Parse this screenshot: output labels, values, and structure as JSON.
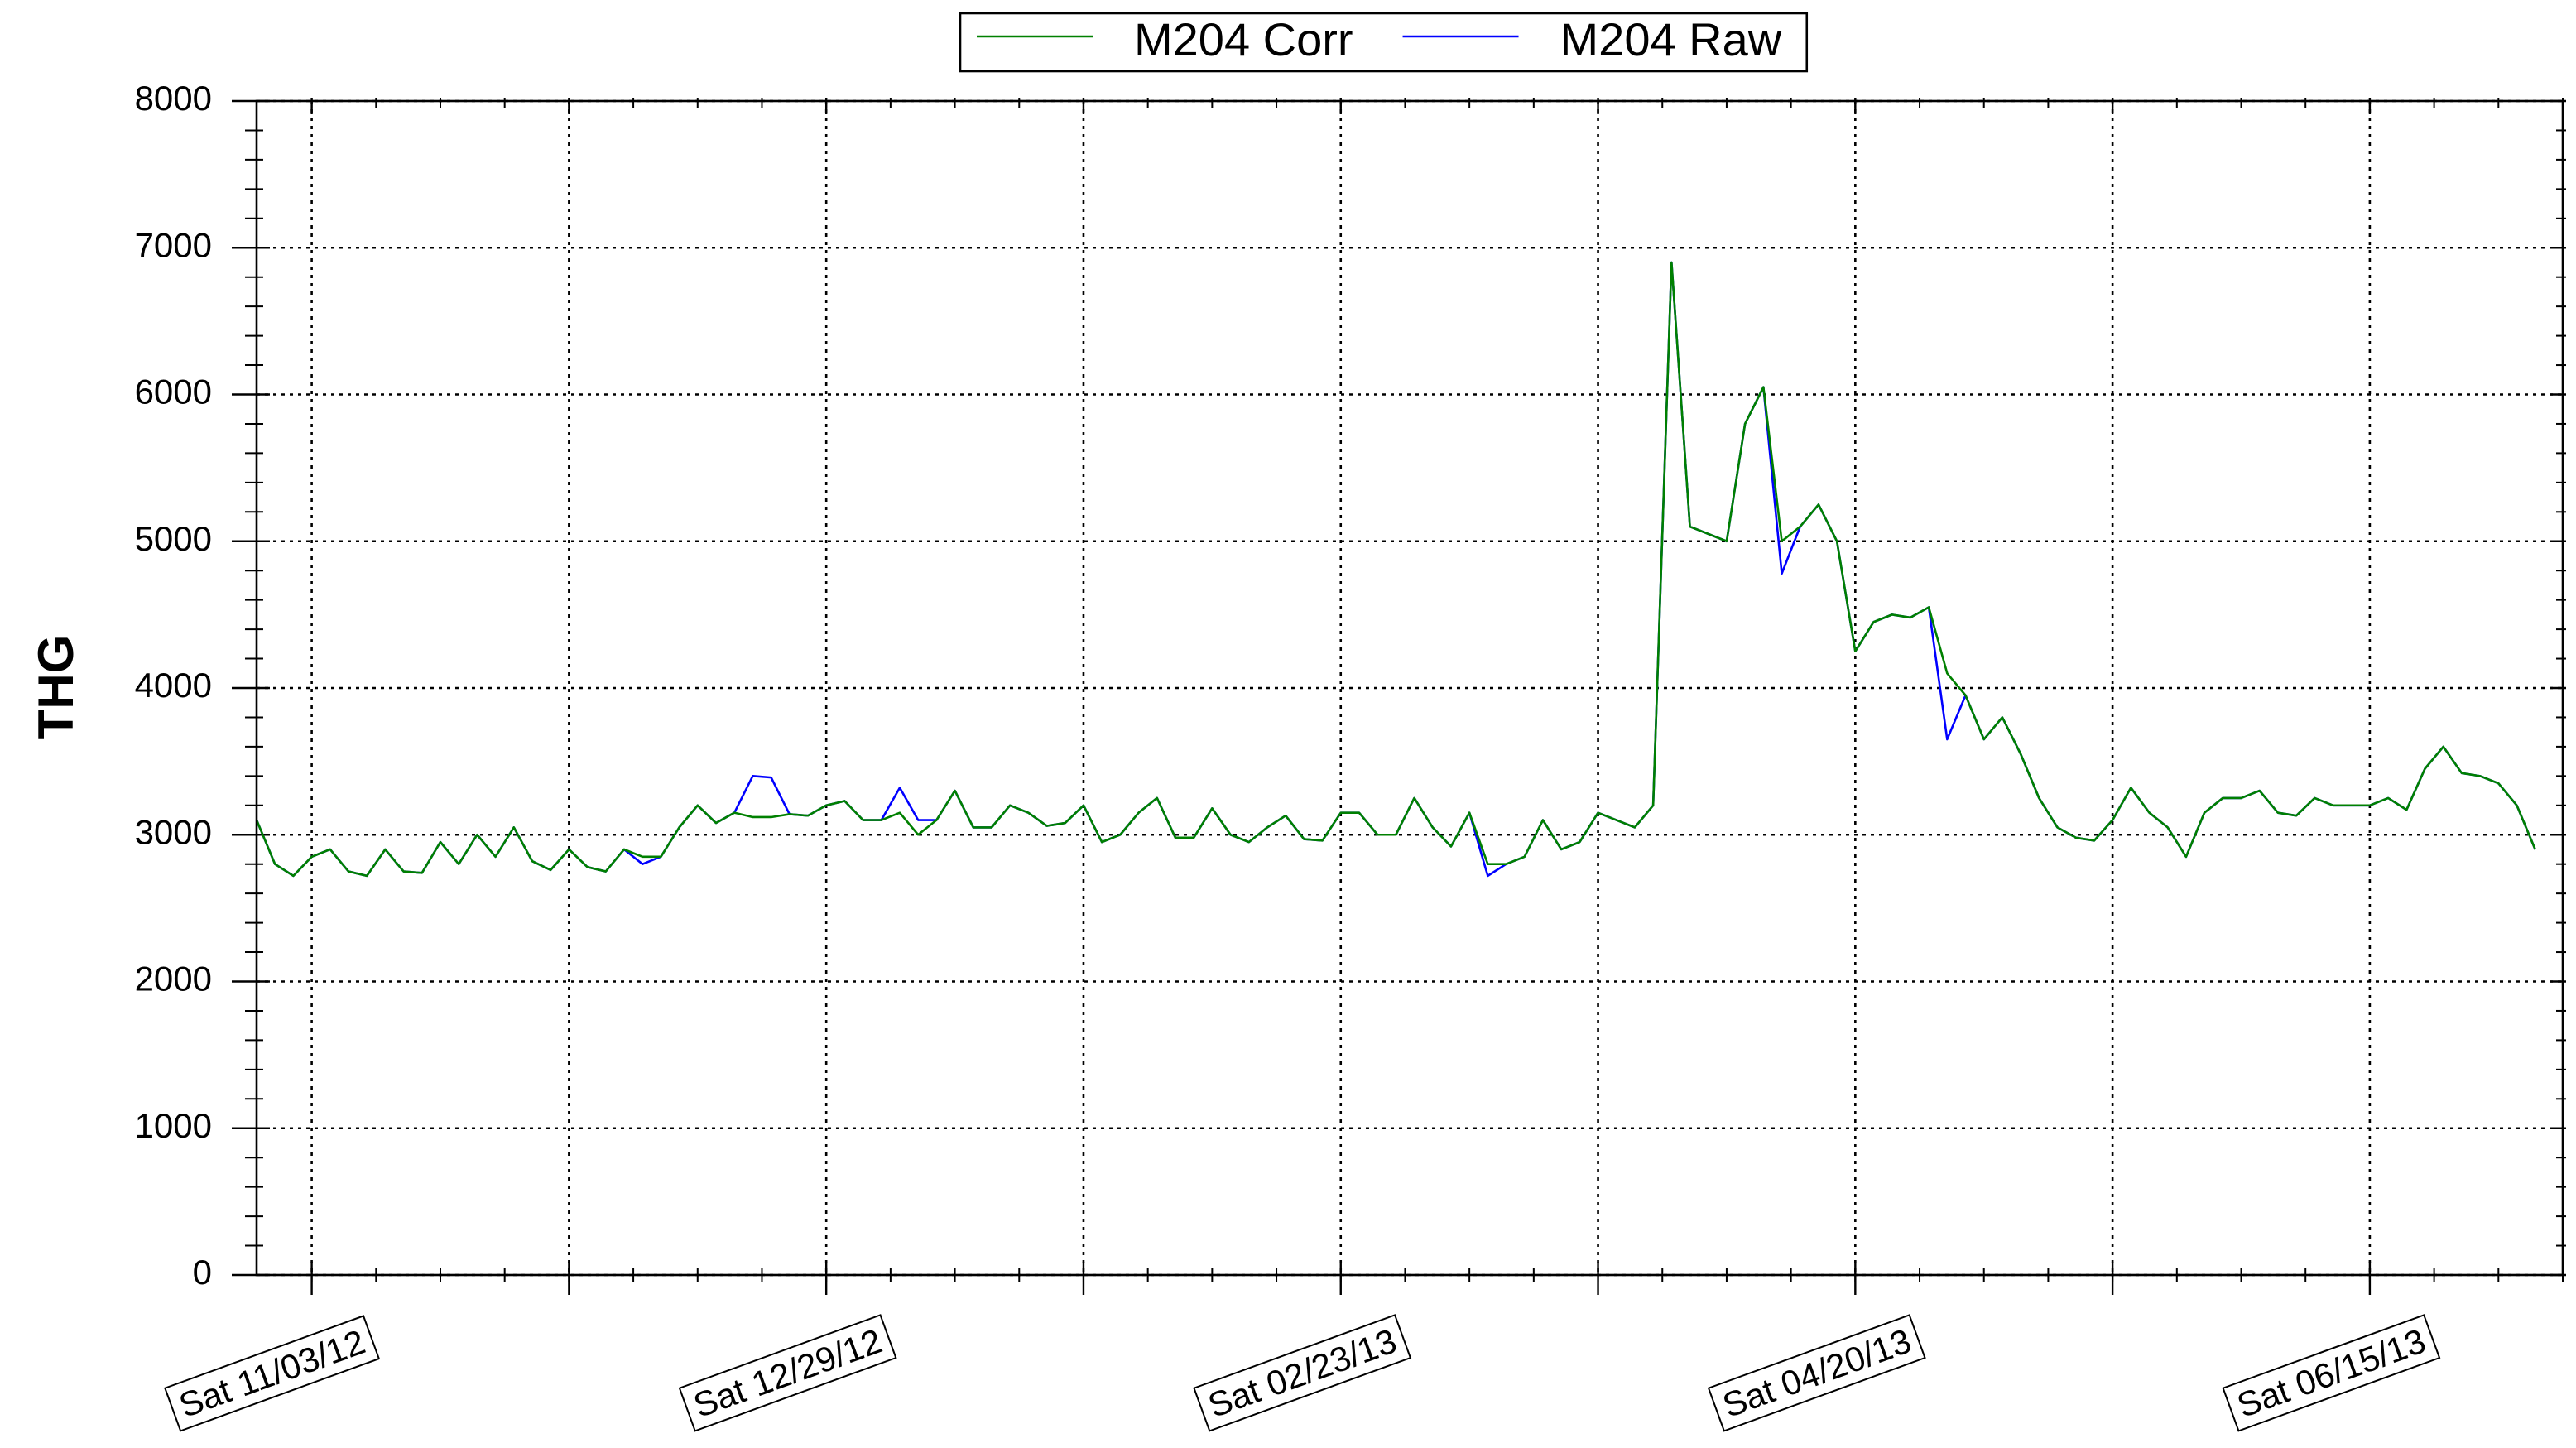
{
  "chart_data": {
    "type": "line",
    "ylabel": "THG",
    "x": [
      "10/28/12",
      "10/30/12",
      "11/01/12",
      "11/03/12",
      "11/05/12",
      "11/07/12",
      "11/09/12",
      "11/11/12",
      "11/13/12",
      "11/15/12",
      "11/17/12",
      "11/19/12",
      "11/21/12",
      "11/23/12",
      "11/25/12",
      "11/27/12",
      "11/29/12",
      "12/01/12",
      "12/03/12",
      "12/05/12",
      "12/07/12",
      "12/09/12",
      "12/11/12",
      "12/13/12",
      "12/15/12",
      "12/17/12",
      "12/19/12",
      "12/21/12",
      "12/23/12",
      "12/25/12",
      "12/27/12",
      "12/29/12",
      "12/31/12",
      "01/02/13",
      "01/04/13",
      "01/06/13",
      "01/08/13",
      "01/10/13",
      "01/12/13",
      "01/14/13",
      "01/16/13",
      "01/18/13",
      "01/20/13",
      "01/22/13",
      "01/24/13",
      "01/26/13",
      "01/28/13",
      "01/30/13",
      "02/01/13",
      "02/03/13",
      "02/05/13",
      "02/07/13",
      "02/09/13",
      "02/11/13",
      "02/13/13",
      "02/15/13",
      "02/17/13",
      "02/19/13",
      "02/21/13",
      "02/23/13",
      "02/25/13",
      "02/27/13",
      "03/01/13",
      "03/03/13",
      "03/05/13",
      "03/07/13",
      "03/09/13",
      "03/11/13",
      "03/13/13",
      "03/15/13",
      "03/17/13",
      "03/19/13",
      "03/21/13",
      "03/23/13",
      "03/25/13",
      "03/27/13",
      "03/29/13",
      "03/31/13",
      "04/02/13",
      "04/04/13",
      "04/06/13",
      "04/08/13",
      "04/10/13",
      "04/12/13",
      "04/14/13",
      "04/16/13",
      "04/18/13",
      "04/20/13",
      "04/22/13",
      "04/24/13",
      "04/26/13",
      "04/28/13",
      "04/30/13",
      "05/02/13",
      "05/04/13",
      "05/06/13",
      "05/08/13",
      "05/10/13",
      "05/12/13",
      "05/14/13",
      "05/16/13",
      "05/18/13",
      "05/20/13",
      "05/22/13",
      "05/24/13",
      "05/26/13",
      "05/28/13",
      "05/30/13",
      "06/01/13",
      "06/03/13",
      "06/05/13",
      "06/07/13",
      "06/09/13",
      "06/11/13",
      "06/13/13",
      "06/15/13",
      "06/17/13",
      "06/19/13",
      "06/21/13",
      "06/23/13",
      "06/25/13",
      "06/27/13",
      "06/29/13",
      "07/01/13",
      "07/03/13"
    ],
    "series": [
      {
        "name": "M204 Corr",
        "color": "#008000",
        "values": [
          3100,
          2800,
          2720,
          2850,
          2900,
          2750,
          2720,
          2900,
          2750,
          2740,
          2950,
          2800,
          3000,
          2850,
          3050,
          2820,
          2760,
          2900,
          2780,
          2750,
          2900,
          2850,
          2850,
          3050,
          3200,
          3080,
          3150,
          3120,
          3120,
          3140,
          3130,
          3200,
          3230,
          3100,
          3100,
          3150,
          3000,
          3100,
          3300,
          3050,
          3050,
          3200,
          3150,
          3060,
          3080,
          3200,
          2950,
          3000,
          3150,
          3250,
          2980,
          2980,
          3180,
          3000,
          2950,
          3050,
          3130,
          2970,
          2960,
          3150,
          3150,
          3000,
          3000,
          3250,
          3050,
          2920,
          3150,
          2800,
          2800,
          2850,
          3100,
          2900,
          2950,
          3150,
          3100,
          3050,
          3200,
          6900,
          5100,
          5050,
          5000,
          5800,
          6050,
          5000,
          5100,
          5250,
          5000,
          4250,
          4450,
          4500,
          4480,
          4550,
          4100,
          3950,
          3650,
          3800,
          3550,
          3250,
          3050,
          2980,
          2960,
          3100,
          3320,
          3150,
          3050,
          2850,
          3150,
          3250,
          3250,
          3300,
          3150,
          3130,
          3250,
          3200,
          3200,
          3200,
          3250,
          3170,
          3450,
          3600,
          3420,
          3400,
          3350,
          3200,
          2900
        ]
      },
      {
        "name": "M204 Raw",
        "color": "#0000ff",
        "values": [
          3100,
          2800,
          2720,
          2850,
          2900,
          2750,
          2720,
          2900,
          2750,
          2740,
          2950,
          2800,
          3000,
          2850,
          3050,
          2820,
          2760,
          2900,
          2780,
          2750,
          2900,
          2800,
          2850,
          3050,
          3200,
          3080,
          3150,
          3400,
          3390,
          3140,
          3130,
          3200,
          3230,
          3100,
          3100,
          3320,
          3100,
          3100,
          3300,
          3050,
          3050,
          3200,
          3150,
          3060,
          3080,
          3200,
          2950,
          3000,
          3150,
          3250,
          2980,
          2980,
          3180,
          3000,
          2950,
          3050,
          3130,
          2970,
          2960,
          3150,
          3150,
          3000,
          3000,
          3250,
          3050,
          2920,
          3150,
          2720,
          2800,
          2850,
          3100,
          2900,
          2950,
          3150,
          3100,
          3050,
          3200,
          6900,
          5100,
          5050,
          5000,
          5800,
          6050,
          4780,
          5100,
          5250,
          5000,
          4250,
          4450,
          4500,
          4480,
          4550,
          3650,
          3950,
          3650,
          3800,
          3550,
          3250,
          3050,
          2980,
          2960,
          3100,
          3320,
          3150,
          3050,
          2850,
          3150,
          3250,
          3250,
          3300,
          3150,
          3130,
          3250,
          3200,
          3200,
          3200,
          3250,
          3170,
          3450,
          3600,
          3420,
          3400,
          3350,
          3200,
          2900
        ]
      }
    ],
    "xlim": [
      "10/28/12",
      "07/06/13"
    ],
    "xticks": [
      {
        "value": "11/03/12",
        "label": "Sat 11/03/12"
      },
      {
        "value": "12/01/12",
        "label": null
      },
      {
        "value": "12/29/12",
        "label": "Sat 12/29/12"
      },
      {
        "value": "01/26/13",
        "label": null
      },
      {
        "value": "02/23/13",
        "label": "Sat 02/23/13"
      },
      {
        "value": "03/23/13",
        "label": null
      },
      {
        "value": "04/20/13",
        "label": "Sat 04/20/13"
      },
      {
        "value": "05/18/13",
        "label": null
      },
      {
        "value": "06/15/13",
        "label": "Sat 06/15/13"
      }
    ],
    "ylim": [
      0,
      8000
    ],
    "yticks": [
      0,
      1000,
      2000,
      3000,
      4000,
      5000,
      6000,
      7000,
      8000
    ],
    "grid": true,
    "legend": "top"
  }
}
